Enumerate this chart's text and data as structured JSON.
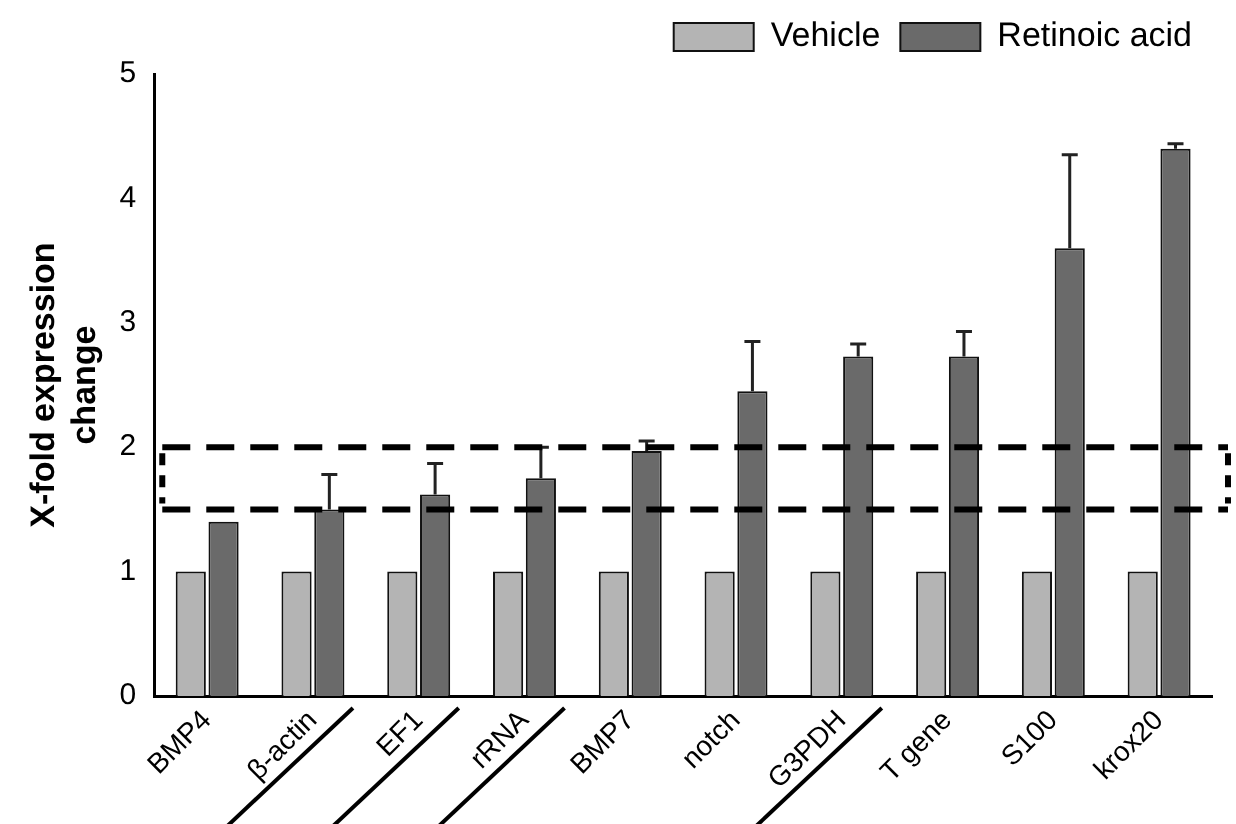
{
  "chart_data": {
    "type": "bar",
    "categories": [
      "BMP4",
      "β-actin",
      "EF1",
      "rRNA",
      "BMP7",
      "notch",
      "G3PDH",
      "T gene",
      "S100",
      "krox20"
    ],
    "series": [
      {
        "name": "Vehicle",
        "color": "#b4b4b4",
        "values": [
          1,
          1,
          1,
          1,
          1,
          1,
          1,
          1,
          1,
          1
        ]
      },
      {
        "name": "Retinoic acid",
        "color": "#6a6a6a",
        "values": [
          1.4,
          1.5,
          1.62,
          1.75,
          1.97,
          2.45,
          2.73,
          2.73,
          3.6,
          4.4
        ],
        "errors": [
          null,
          0.28,
          0.25,
          0.25,
          0.08,
          0.4,
          0.1,
          0.2,
          0.75,
          0.04
        ]
      }
    ],
    "ylabel": "X-fold expression change",
    "ylim": [
      0,
      5
    ],
    "yticks": [
      0,
      1,
      2,
      3,
      4,
      5
    ],
    "ref_lines": [
      {
        "axis": "y",
        "value": 2,
        "line_style": "dashed"
      },
      {
        "axis": "y",
        "value": 1.5,
        "line_style": "dashed"
      }
    ],
    "grid": false,
    "legend": "top right"
  }
}
